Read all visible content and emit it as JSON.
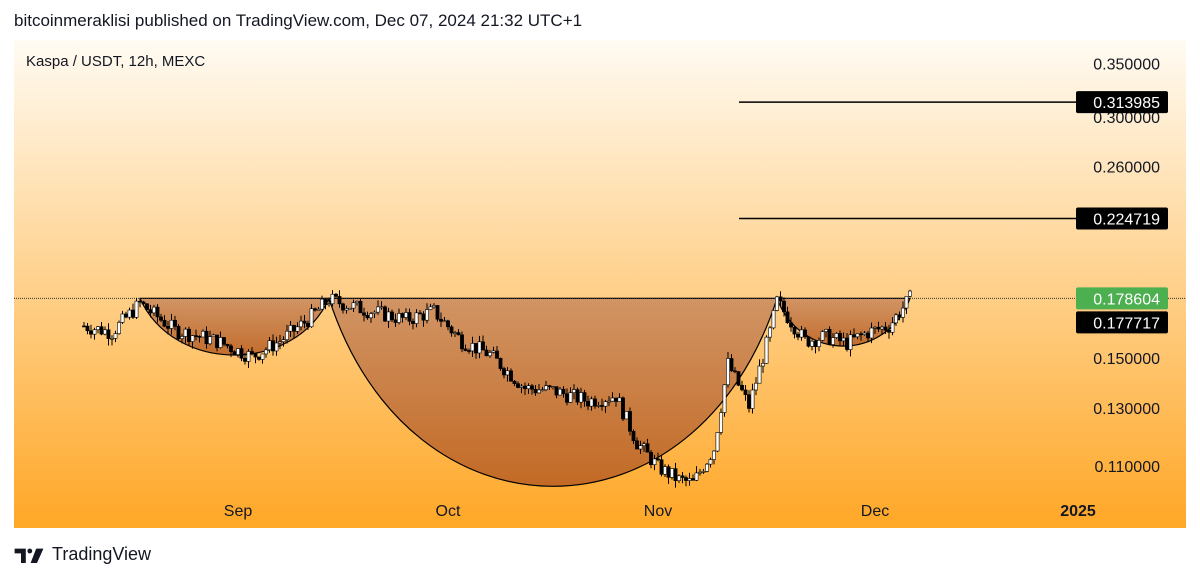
{
  "header": {
    "publish_text": "bitcoinmeraklisi published on TradingView.com, Dec 07, 2024 21:32 UTC+1"
  },
  "chart": {
    "symbol_title": "Kaspa / USDT, 12h, MEXC"
  },
  "footer": {
    "brand": "TradingView",
    "logo_icon": "tradingview-logo-icon"
  },
  "colors": {
    "background_top": "#fffbf3",
    "background_bottom": "#ffa726",
    "pattern_fill": "#b56a3a",
    "up_candle": "#ffffff",
    "down_candle": "#000000",
    "current_price_badge": "#4caf50",
    "level_badge": "#000000"
  },
  "chart_data": {
    "type": "candlestick",
    "instrument": "Kaspa / USDT",
    "interval": "12h",
    "exchange": "MEXC",
    "x_labels": [
      "Sep",
      "Oct",
      "Nov",
      "Dec",
      "2025"
    ],
    "y_ticks": [
      "0.350000",
      "0.300000",
      "0.260000",
      "0.150000",
      "0.130000",
      "0.110000"
    ],
    "ylim": [
      0.095,
      0.37
    ],
    "scale": "log",
    "price_levels": [
      {
        "value": 0.313985,
        "label": "0.313985",
        "style": "black-badge",
        "line": true
      },
      {
        "value": 0.224719,
        "label": "0.224719",
        "style": "black-badge",
        "line": true
      },
      {
        "value": 0.178604,
        "label": "0.178604",
        "style": "green-badge",
        "line": false
      },
      {
        "value": 0.177717,
        "label": "0.177717",
        "style": "black-badge",
        "line": false
      }
    ],
    "neckline": 0.1786,
    "patterns": [
      {
        "kind": "cup-and-handle",
        "from": "Aug 19",
        "to": "Sep 15",
        "bottom": 0.1515
      },
      {
        "kind": "cup",
        "from": "Sep 15",
        "to": "Nov 18",
        "bottom": 0.1035
      },
      {
        "kind": "handle",
        "from": "Nov 18",
        "to": "Dec 07",
        "bottom": 0.1555
      }
    ],
    "price_path": [
      [
        "Aug 11",
        0.165
      ],
      [
        "Aug 15",
        0.162
      ],
      [
        "Aug 19",
        0.176
      ],
      [
        "Aug 24",
        0.163
      ],
      [
        "Aug 30",
        0.158
      ],
      [
        "Sep 04",
        0.151
      ],
      [
        "Sep 08",
        0.158
      ],
      [
        "Sep 12",
        0.168
      ],
      [
        "Sep 15",
        0.178
      ],
      [
        "Sep 20",
        0.173
      ],
      [
        "Sep 26",
        0.168
      ],
      [
        "Sep 30",
        0.172
      ],
      [
        "Oct 04",
        0.158
      ],
      [
        "Oct 08",
        0.152
      ],
      [
        "Oct 13",
        0.138
      ],
      [
        "Oct 17",
        0.137
      ],
      [
        "Oct 22",
        0.133
      ],
      [
        "Oct 26",
        0.135
      ],
      [
        "Oct 29",
        0.118
      ],
      [
        "Nov 01",
        0.11
      ],
      [
        "Nov 04",
        0.106
      ],
      [
        "Nov 06",
        0.105
      ],
      [
        "Nov 09",
        0.116
      ],
      [
        "Nov 11",
        0.148
      ],
      [
        "Nov 14",
        0.131
      ],
      [
        "Nov 17",
        0.162
      ],
      [
        "Nov 18",
        0.177
      ],
      [
        "Nov 22",
        0.158
      ],
      [
        "Nov 25",
        0.16
      ],
      [
        "Nov 28",
        0.157
      ],
      [
        "Dec 01",
        0.162
      ],
      [
        "Dec 04",
        0.165
      ],
      [
        "Dec 07",
        0.1786
      ]
    ]
  }
}
